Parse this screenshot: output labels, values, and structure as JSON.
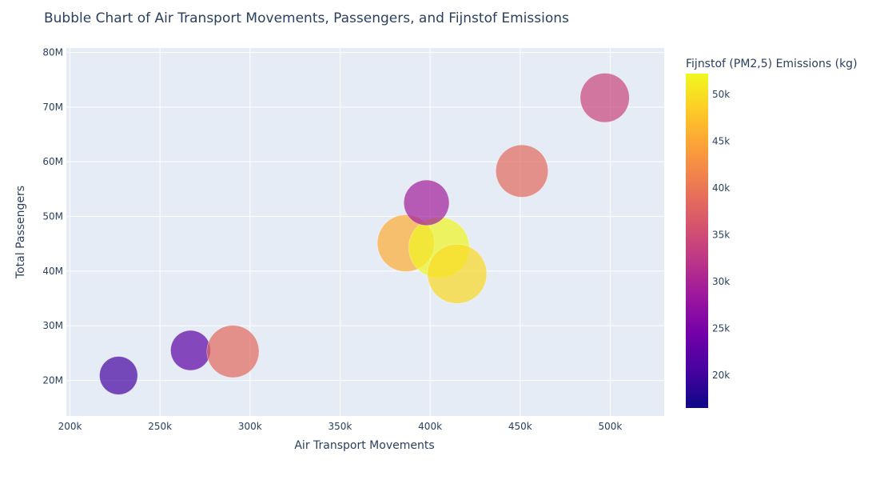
{
  "chart_data": {
    "type": "scatter",
    "title": "Bubble Chart of Air Transport Movements, Passengers, and Fijnstof Emissions",
    "xlabel": "Air Transport Movements",
    "ylabel": "Total Passengers",
    "xlim": [
      198000,
      530000
    ],
    "ylim": [
      13500000,
      80800000
    ],
    "x_ticks": [
      200000,
      250000,
      300000,
      350000,
      400000,
      450000,
      500000
    ],
    "x_tick_labels": [
      "200k",
      "250k",
      "300k",
      "350k",
      "400k",
      "450k",
      "500k"
    ],
    "y_ticks": [
      20000000,
      30000000,
      40000000,
      50000000,
      60000000,
      70000000,
      80000000
    ],
    "y_tick_labels": [
      "20M",
      "30M",
      "40M",
      "50M",
      "60M",
      "70M",
      "80M"
    ],
    "grid": true,
    "colorbar": {
      "title": "Fijnstof (PM2,5) Emissions (kg)",
      "range": [
        16500,
        52200
      ],
      "ticks": [
        20000,
        25000,
        30000,
        35000,
        40000,
        45000,
        50000
      ],
      "tick_labels": [
        "20k",
        "25k",
        "30k",
        "35k",
        "40k",
        "45k",
        "50k"
      ],
      "colorscale": [
        "#0d0887",
        "#46039f",
        "#7201a8",
        "#9c179e",
        "#bd3786",
        "#d8576b",
        "#ed7953",
        "#fb9f3a",
        "#fdca26",
        "#f0f921"
      ]
    },
    "points": [
      {
        "x": 227000,
        "y": 20900000,
        "emission": 20500
      },
      {
        "x": 267000,
        "y": 25500000,
        "emission": 22500
      },
      {
        "x": 290500,
        "y": 25300000,
        "emission": 38500
      },
      {
        "x": 386500,
        "y": 45100000,
        "emission": 45500
      },
      {
        "x": 405000,
        "y": 44300000,
        "emission": 52000
      },
      {
        "x": 415000,
        "y": 39500000,
        "emission": 49500
      },
      {
        "x": 398000,
        "y": 52500000,
        "emission": 29000
      },
      {
        "x": 451000,
        "y": 58300000,
        "emission": 38500
      },
      {
        "x": 497000,
        "y": 71700000,
        "emission": 34000
      }
    ]
  }
}
